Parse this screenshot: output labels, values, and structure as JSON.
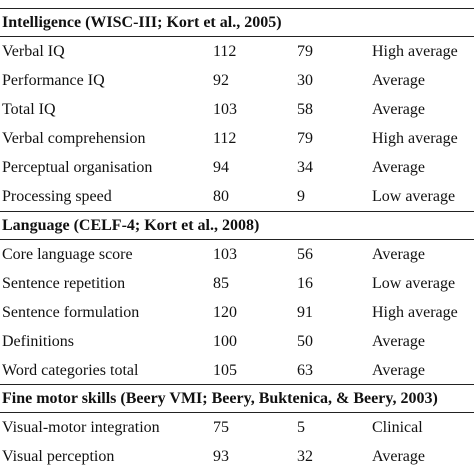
{
  "sections": [
    {
      "title": "Intelligence (WISC-III; Kort et al., 2005)",
      "rows": [
        {
          "label": "Verbal IQ",
          "score": "112",
          "percentile": "79",
          "classification": "High average"
        },
        {
          "label": "Performance IQ",
          "score": "92",
          "percentile": "30",
          "classification": "Average"
        },
        {
          "label": "Total IQ",
          "score": "103",
          "percentile": "58",
          "classification": "Average"
        },
        {
          "label": "Verbal comprehension",
          "score": "112",
          "percentile": "79",
          "classification": "High average"
        },
        {
          "label": "Perceptual organisation",
          "score": "94",
          "percentile": "34",
          "classification": "Average"
        },
        {
          "label": "Processing speed",
          "score": "80",
          "percentile": "9",
          "classification": "Low average"
        }
      ]
    },
    {
      "title": "Language (CELF-4; Kort et al., 2008)",
      "rows": [
        {
          "label": "Core language score",
          "score": "103",
          "percentile": "56",
          "classification": "Average"
        },
        {
          "label": "Sentence repetition",
          "score": "85",
          "percentile": "16",
          "classification": "Low average"
        },
        {
          "label": "Sentence formulation",
          "score": "120",
          "percentile": "91",
          "classification": "High average"
        },
        {
          "label": "Definitions",
          "score": "100",
          "percentile": "50",
          "classification": "Average"
        },
        {
          "label": "Word categories total",
          "score": "105",
          "percentile": "63",
          "classification": "Average"
        }
      ]
    },
    {
      "title": "Fine motor skills (Beery VMI; Beery, Buktenica, & Beery, 2003)",
      "rows": [
        {
          "label": "Visual-motor integration",
          "score": "75",
          "percentile": "5",
          "classification": "Clinical"
        },
        {
          "label": "Visual perception",
          "score": "93",
          "percentile": "32",
          "classification": "Average"
        }
      ]
    }
  ]
}
